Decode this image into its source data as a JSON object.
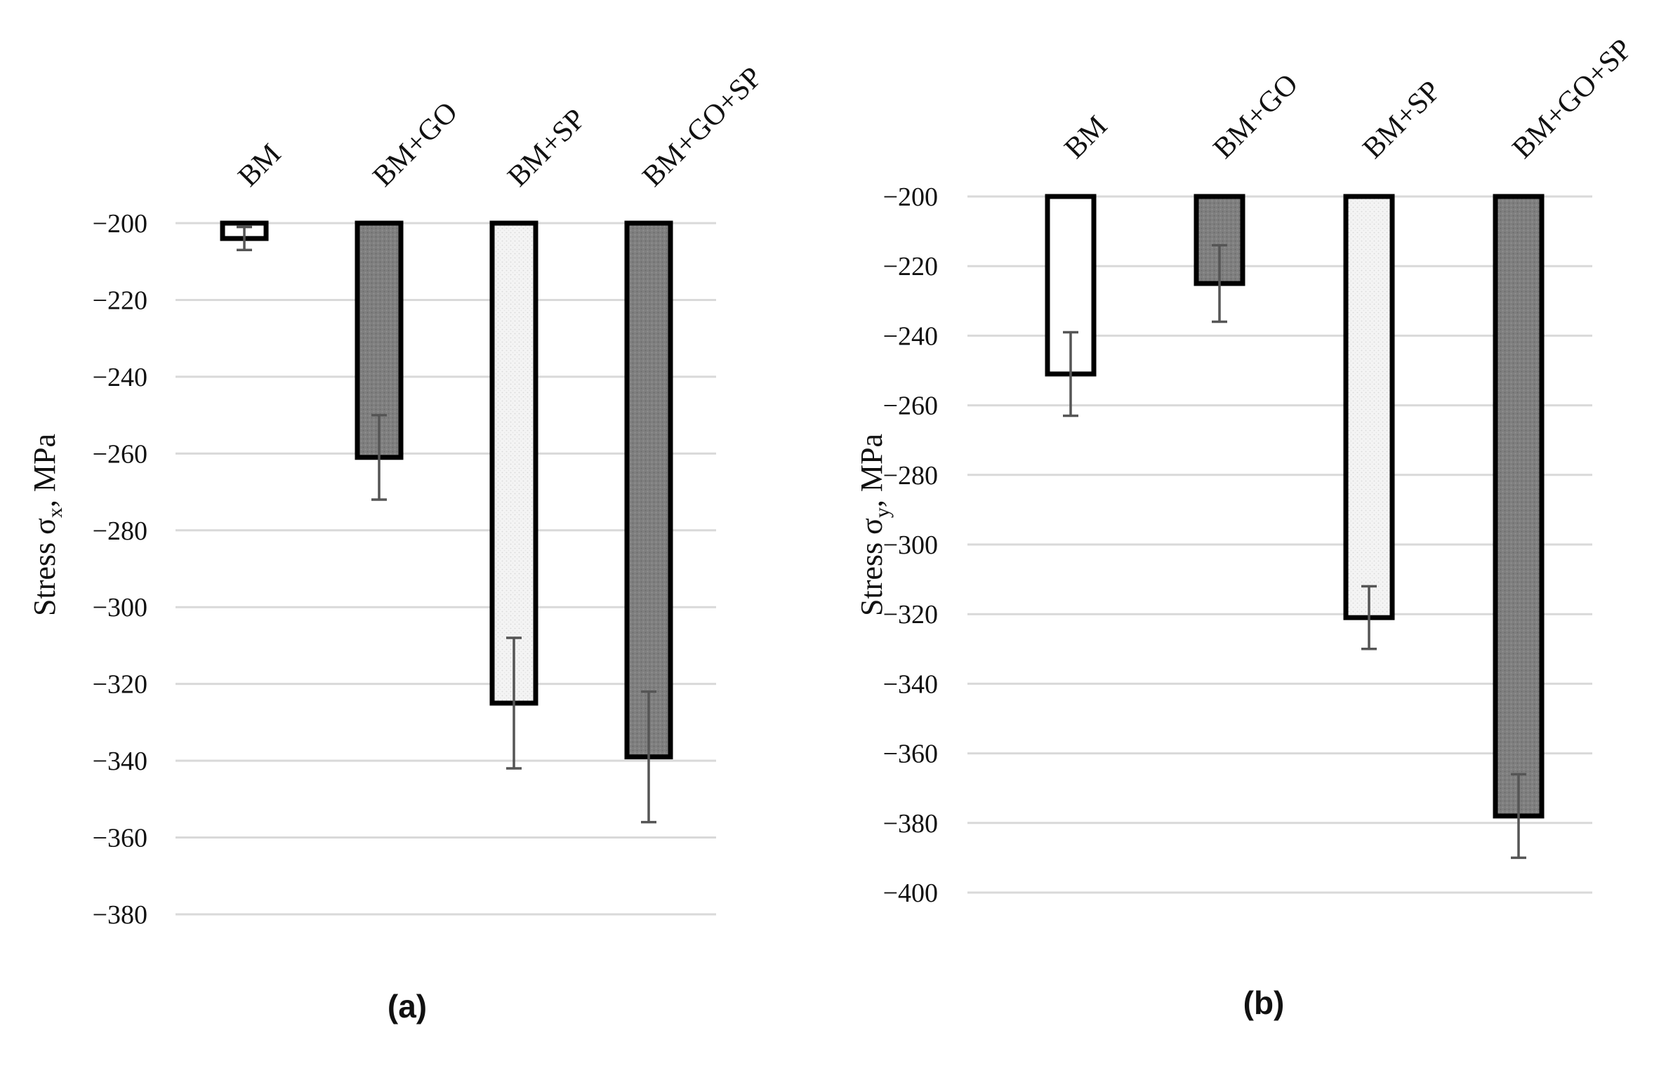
{
  "chart_data": [
    {
      "type": "bar",
      "caption": "(a)",
      "ylabel_main": "Stress σ",
      "ylabel_sub": "x",
      "ylabel_unit": ", MPa",
      "categories": [
        "BM",
        "BM+GO",
        "BM+SP",
        "BM+GO+SP"
      ],
      "values": [
        -204,
        -261,
        -325,
        -339
      ],
      "errors": [
        3,
        11,
        17,
        17
      ],
      "baseline": -200,
      "ylim": [
        -380,
        -200
      ],
      "yticks": [
        -200,
        -220,
        -240,
        -260,
        -280,
        -300,
        -320,
        -340,
        -360,
        -380
      ],
      "ytick_labels": [
        "−200",
        "−220",
        "−240",
        "−260",
        "−280",
        "−300",
        "−320",
        "−340",
        "−360",
        "−380"
      ],
      "fills": [
        "white",
        "dark",
        "light",
        "dark"
      ],
      "grid": true
    },
    {
      "type": "bar",
      "caption": "(b)",
      "ylabel_main": "Stress σ",
      "ylabel_sub": "y",
      "ylabel_unit": ", MPa",
      "categories": [
        "BM",
        "BM+GO",
        "BM+SP",
        "BM+GO+SP"
      ],
      "values": [
        -251,
        -225,
        -321,
        -378
      ],
      "errors": [
        12,
        11,
        9,
        12
      ],
      "baseline": -200,
      "ylim": [
        -400,
        -200
      ],
      "yticks": [
        -200,
        -220,
        -240,
        -260,
        -280,
        -300,
        -320,
        -340,
        -360,
        -380,
        -400
      ],
      "ytick_labels": [
        "−200",
        "−220",
        "−240",
        "−260",
        "−280",
        "−300",
        "−320",
        "−340",
        "−360",
        "−380",
        "−400"
      ],
      "fills": [
        "white",
        "dark",
        "light",
        "dark"
      ],
      "grid": true
    }
  ],
  "colors": {
    "dark": "#7f7f7f",
    "light": "#f2f2f2",
    "white": "#ffffff",
    "grid": "#d9d9d9",
    "error": "#555555"
  }
}
